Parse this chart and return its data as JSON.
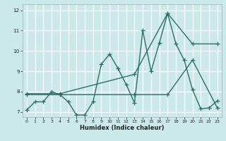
{
  "title": "",
  "xlabel": "Humidex (Indice chaleur)",
  "ylabel": "",
  "bg_color": "#cce9e9",
  "grid_color": "#ffffff",
  "line_color": "#2e6e63",
  "xlim": [
    -0.5,
    23.5
  ],
  "ylim": [
    6.75,
    12.3
  ],
  "yticks": [
    7,
    8,
    9,
    10,
    11,
    12
  ],
  "xticks": [
    0,
    1,
    2,
    3,
    4,
    5,
    6,
    7,
    8,
    9,
    10,
    11,
    12,
    13,
    14,
    15,
    16,
    17,
    18,
    19,
    20,
    21,
    22,
    23
  ],
  "series1_x": [
    0,
    1,
    2,
    3,
    4,
    5,
    6,
    7,
    8,
    9,
    10,
    11,
    12,
    13,
    14,
    15,
    16,
    17,
    18,
    19,
    20,
    21,
    22,
    23
  ],
  "series1_y": [
    7.1,
    7.5,
    7.5,
    8.0,
    7.85,
    7.5,
    6.85,
    6.85,
    7.5,
    9.35,
    9.85,
    9.15,
    8.35,
    7.45,
    11.0,
    9.0,
    10.4,
    11.85,
    10.35,
    9.55,
    8.1,
    7.15,
    7.2,
    7.55
  ],
  "series2_x": [
    0,
    4,
    13,
    17,
    20,
    23
  ],
  "series2_y": [
    7.9,
    7.9,
    8.85,
    11.85,
    10.35,
    10.35
  ],
  "series3_x": [
    0,
    4,
    13,
    17,
    20,
    23
  ],
  "series3_y": [
    7.85,
    7.85,
    7.85,
    7.85,
    9.55,
    7.2
  ],
  "linewidth": 1.0,
  "markersize": 4.0
}
